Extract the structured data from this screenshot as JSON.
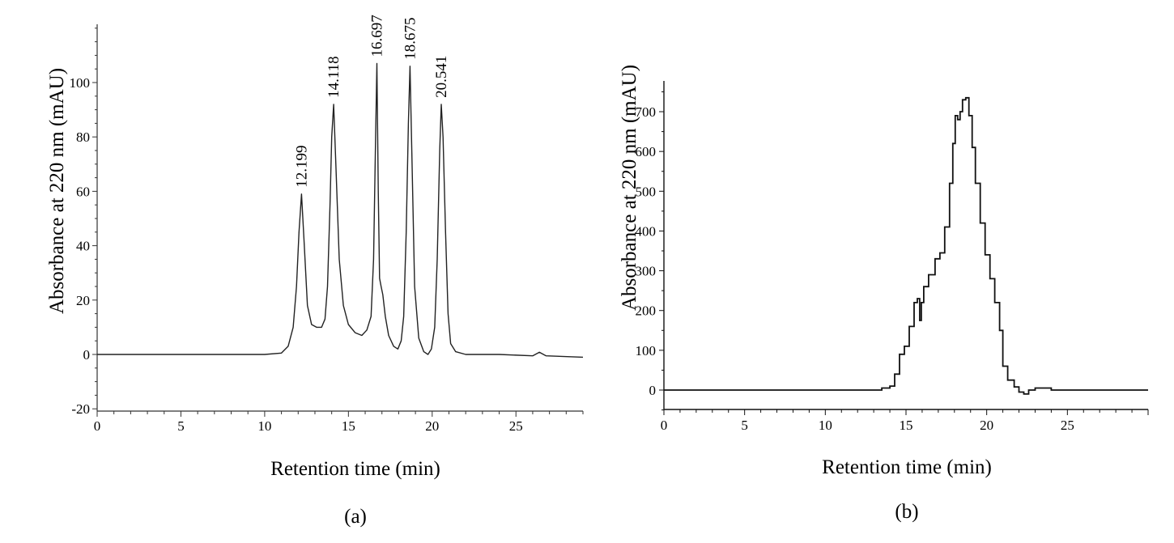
{
  "chart_data": [
    {
      "type": "line",
      "panel_label": "(a)",
      "xlabel": "Retention time (min)",
      "ylabel": "Absorbance at 220 nm (mAU)",
      "xlim": [
        0,
        29
      ],
      "ylim": [
        -20,
        120
      ],
      "x_ticks": [
        0,
        5,
        10,
        15,
        20,
        25
      ],
      "x_tick_labels": [
        "0",
        "5",
        "10",
        "15",
        "20",
        "25"
      ],
      "y_ticks": [
        -20,
        0,
        20,
        40,
        60,
        80,
        100
      ],
      "y_tick_labels": [
        "-20",
        "0",
        "20",
        "40",
        "60",
        "80",
        "100"
      ],
      "peaks": [
        {
          "label": "12.199",
          "x": 12.199,
          "y": 59
        },
        {
          "label": "14.118",
          "x": 14.118,
          "y": 92
        },
        {
          "label": "16.697",
          "x": 16.697,
          "y": 107
        },
        {
          "label": "18.675",
          "x": 18.675,
          "y": 106
        },
        {
          "label": "20.541",
          "x": 20.541,
          "y": 92
        }
      ],
      "series": [
        {
          "name": "chromatogram",
          "x": [
            0,
            5,
            10,
            11.0,
            11.4,
            11.7,
            11.9,
            12.05,
            12.199,
            12.35,
            12.55,
            12.8,
            13.1,
            13.4,
            13.6,
            13.75,
            13.9,
            14.0,
            14.118,
            14.25,
            14.45,
            14.7,
            15.0,
            15.4,
            15.8,
            16.1,
            16.35,
            16.5,
            16.62,
            16.697,
            16.78,
            16.86,
            16.95,
            17.05,
            17.2,
            17.4,
            17.7,
            17.95,
            18.15,
            18.3,
            18.45,
            18.58,
            18.675,
            18.78,
            18.95,
            19.2,
            19.5,
            19.75,
            19.95,
            20.15,
            20.3,
            20.45,
            20.541,
            20.65,
            20.8,
            20.95,
            21.1,
            21.4,
            22,
            24,
            26,
            26.4,
            26.8,
            29
          ],
          "y": [
            0,
            0,
            0,
            0.5,
            3,
            10,
            25,
            45,
            59,
            42,
            18,
            11,
            10,
            10,
            13,
            25,
            55,
            80,
            92,
            70,
            35,
            18,
            11,
            8,
            7,
            9,
            14,
            35,
            80,
            107,
            60,
            28,
            25,
            22,
            14,
            7,
            3,
            2,
            5,
            14,
            45,
            85,
            106,
            75,
            25,
            6,
            1,
            0,
            2,
            10,
            35,
            75,
            92,
            80,
            45,
            15,
            4,
            1,
            0,
            0,
            -0.5,
            0.8,
            -0.5,
            -1
          ]
        }
      ]
    },
    {
      "type": "line",
      "panel_label": "(b)",
      "xlabel": "Retention time (min)",
      "ylabel": "Absorbance at 220 nm (mAU)",
      "xlim": [
        0,
        30
      ],
      "ylim": [
        -50,
        780
      ],
      "x_ticks": [
        0,
        5,
        10,
        15,
        20,
        25
      ],
      "x_tick_labels": [
        "0",
        "5",
        "10",
        "15",
        "20",
        "25"
      ],
      "y_ticks": [
        0,
        100,
        200,
        300,
        400,
        500,
        600,
        700
      ],
      "y_tick_labels": [
        "0",
        "100",
        "200",
        "300",
        "400",
        "500",
        "600",
        "700"
      ],
      "series": [
        {
          "name": "chromatogram",
          "x": [
            0,
            12.8,
            13.5,
            14.0,
            14.3,
            14.6,
            14.9,
            15.2,
            15.5,
            15.7,
            15.85,
            15.95,
            16.1,
            16.4,
            16.8,
            17.1,
            17.4,
            17.7,
            17.9,
            18.05,
            18.2,
            18.35,
            18.5,
            18.7,
            18.9,
            19.1,
            19.3,
            19.6,
            19.9,
            20.2,
            20.5,
            20.8,
            21.0,
            21.3,
            21.7,
            22.0,
            22.3,
            22.6,
            23.0,
            23.6,
            24.0,
            30
          ],
          "y": [
            0,
            0,
            5,
            10,
            40,
            90,
            110,
            160,
            220,
            230,
            175,
            220,
            260,
            290,
            330,
            345,
            410,
            520,
            620,
            690,
            680,
            700,
            730,
            735,
            690,
            610,
            520,
            420,
            340,
            280,
            220,
            150,
            60,
            25,
            8,
            -5,
            -10,
            0,
            5,
            5,
            0,
            0
          ]
        }
      ]
    }
  ]
}
